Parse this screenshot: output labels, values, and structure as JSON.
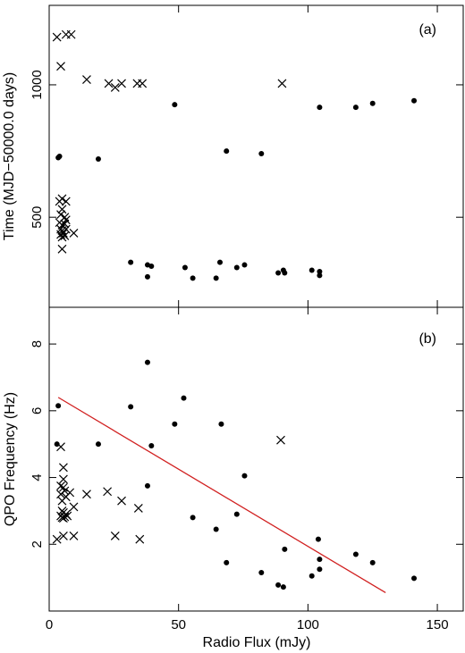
{
  "chart_data": [
    {
      "type": "scatter",
      "panel_label": "(a)",
      "xlabel": "",
      "ylabel": "Time (MJD−50000.0 days)",
      "xlim": [
        0,
        160
      ],
      "ylim": [
        160,
        1300
      ],
      "xticks": [
        0,
        50,
        100,
        150
      ],
      "yticks": [
        500,
        1000
      ],
      "show_x_tick_labels": false,
      "grid": false,
      "legend": "none",
      "series": [
        {
          "marker": "dot",
          "points": [
            [
              3.5,
              725
            ],
            [
              4,
              730
            ],
            [
              19,
              720
            ],
            [
              48.5,
              925
            ],
            [
              68.5,
              750
            ],
            [
              82,
              740
            ],
            [
              104.5,
              915
            ],
            [
              118.5,
              915
            ],
            [
              125,
              930
            ],
            [
              141,
              940
            ],
            [
              31.5,
              330
            ],
            [
              38,
              320
            ],
            [
              39.5,
              315
            ],
            [
              52.5,
              310
            ],
            [
              55.5,
              270
            ],
            [
              66,
              330
            ],
            [
              64.5,
              270
            ],
            [
              72.5,
              310
            ],
            [
              75.5,
              320
            ],
            [
              88.5,
              290
            ],
            [
              90.5,
              300
            ],
            [
              91,
              290
            ],
            [
              101.5,
              300
            ],
            [
              104.5,
              295
            ],
            [
              104.5,
              280
            ],
            [
              38,
              275
            ]
          ]
        },
        {
          "marker": "cross",
          "points": [
            [
              3,
              1180
            ],
            [
              6.5,
              1190
            ],
            [
              8.5,
              1190
            ],
            [
              4.5,
              1070
            ],
            [
              14.5,
              1020
            ],
            [
              23,
              1005
            ],
            [
              25.5,
              990
            ],
            [
              28,
              1005
            ],
            [
              34,
              1005
            ],
            [
              36,
              1005
            ],
            [
              90,
              1005
            ],
            [
              5,
              570
            ],
            [
              4,
              560
            ],
            [
              6.5,
              560
            ],
            [
              5,
              530
            ],
            [
              4.5,
              510
            ],
            [
              6,
              500
            ],
            [
              4,
              480
            ],
            [
              6.5,
              490
            ],
            [
              5,
              470
            ],
            [
              6,
              475
            ],
            [
              4.5,
              455
            ],
            [
              5,
              450
            ],
            [
              6.5,
              455
            ],
            [
              5.5,
              440
            ],
            [
              4.5,
              435
            ],
            [
              6,
              430
            ],
            [
              5,
              425
            ],
            [
              9.5,
              440
            ],
            [
              5,
              380
            ]
          ]
        }
      ]
    },
    {
      "type": "scatter",
      "panel_label": "(b)",
      "xlabel": "Radio Flux (mJy)",
      "ylabel": "QPO Frequency (Hz)",
      "xlim": [
        0,
        160
      ],
      "ylim": [
        0,
        9.1
      ],
      "xticks": [
        0,
        50,
        100,
        150
      ],
      "yticks": [
        2,
        4,
        6,
        8
      ],
      "grid": false,
      "legend": "none",
      "fit_line": {
        "color": "#d12020",
        "from": [
          3.5,
          6.4
        ],
        "to": [
          130,
          0.55
        ]
      },
      "series": [
        {
          "marker": "dot",
          "points": [
            [
              3.5,
              6.15
            ],
            [
              3,
              5
            ],
            [
              19,
              5
            ],
            [
              31.5,
              6.12
            ],
            [
              38,
              7.45
            ],
            [
              38,
              3.75
            ],
            [
              39.5,
              4.95
            ],
            [
              48.5,
              5.6
            ],
            [
              52,
              6.38
            ],
            [
              55.5,
              2.8
            ],
            [
              66.5,
              5.6
            ],
            [
              64.5,
              2.45
            ],
            [
              68.5,
              1.45
            ],
            [
              72.5,
              2.9
            ],
            [
              75.5,
              4.05
            ],
            [
              82,
              1.15
            ],
            [
              88.5,
              0.78
            ],
            [
              90.5,
              0.72
            ],
            [
              91,
              1.85
            ],
            [
              101.5,
              1.05
            ],
            [
              104,
              2.15
            ],
            [
              104.5,
              1.55
            ],
            [
              104.5,
              1.25
            ],
            [
              118.5,
              1.7
            ],
            [
              125,
              1.45
            ],
            [
              141,
              0.98
            ]
          ]
        },
        {
          "marker": "cross",
          "points": [
            [
              3,
              2.15
            ],
            [
              5.5,
              2.25
            ],
            [
              9.5,
              2.25
            ],
            [
              25.5,
              2.25
            ],
            [
              35,
              2.15
            ],
            [
              14.5,
              3.5
            ],
            [
              22.5,
              3.58
            ],
            [
              28,
              3.3
            ],
            [
              34.5,
              3.08
            ],
            [
              89.5,
              5.12
            ],
            [
              4.5,
              4.92
            ],
            [
              5.5,
              4.3
            ],
            [
              5.5,
              3.95
            ],
            [
              4.5,
              3.75
            ],
            [
              5.5,
              3.7
            ],
            [
              6,
              3.6
            ],
            [
              8,
              3.55
            ],
            [
              4.5,
              3.5
            ],
            [
              6.5,
              3.42
            ],
            [
              5,
              3.3
            ],
            [
              9.5,
              3.12
            ],
            [
              5,
              3
            ],
            [
              5.5,
              2.95
            ],
            [
              6.5,
              2.9
            ],
            [
              4.5,
              2.85
            ],
            [
              5,
              2.8
            ],
            [
              6,
              2.82
            ],
            [
              5.5,
              2.78
            ],
            [
              7,
              2.85
            ]
          ]
        }
      ]
    }
  ]
}
